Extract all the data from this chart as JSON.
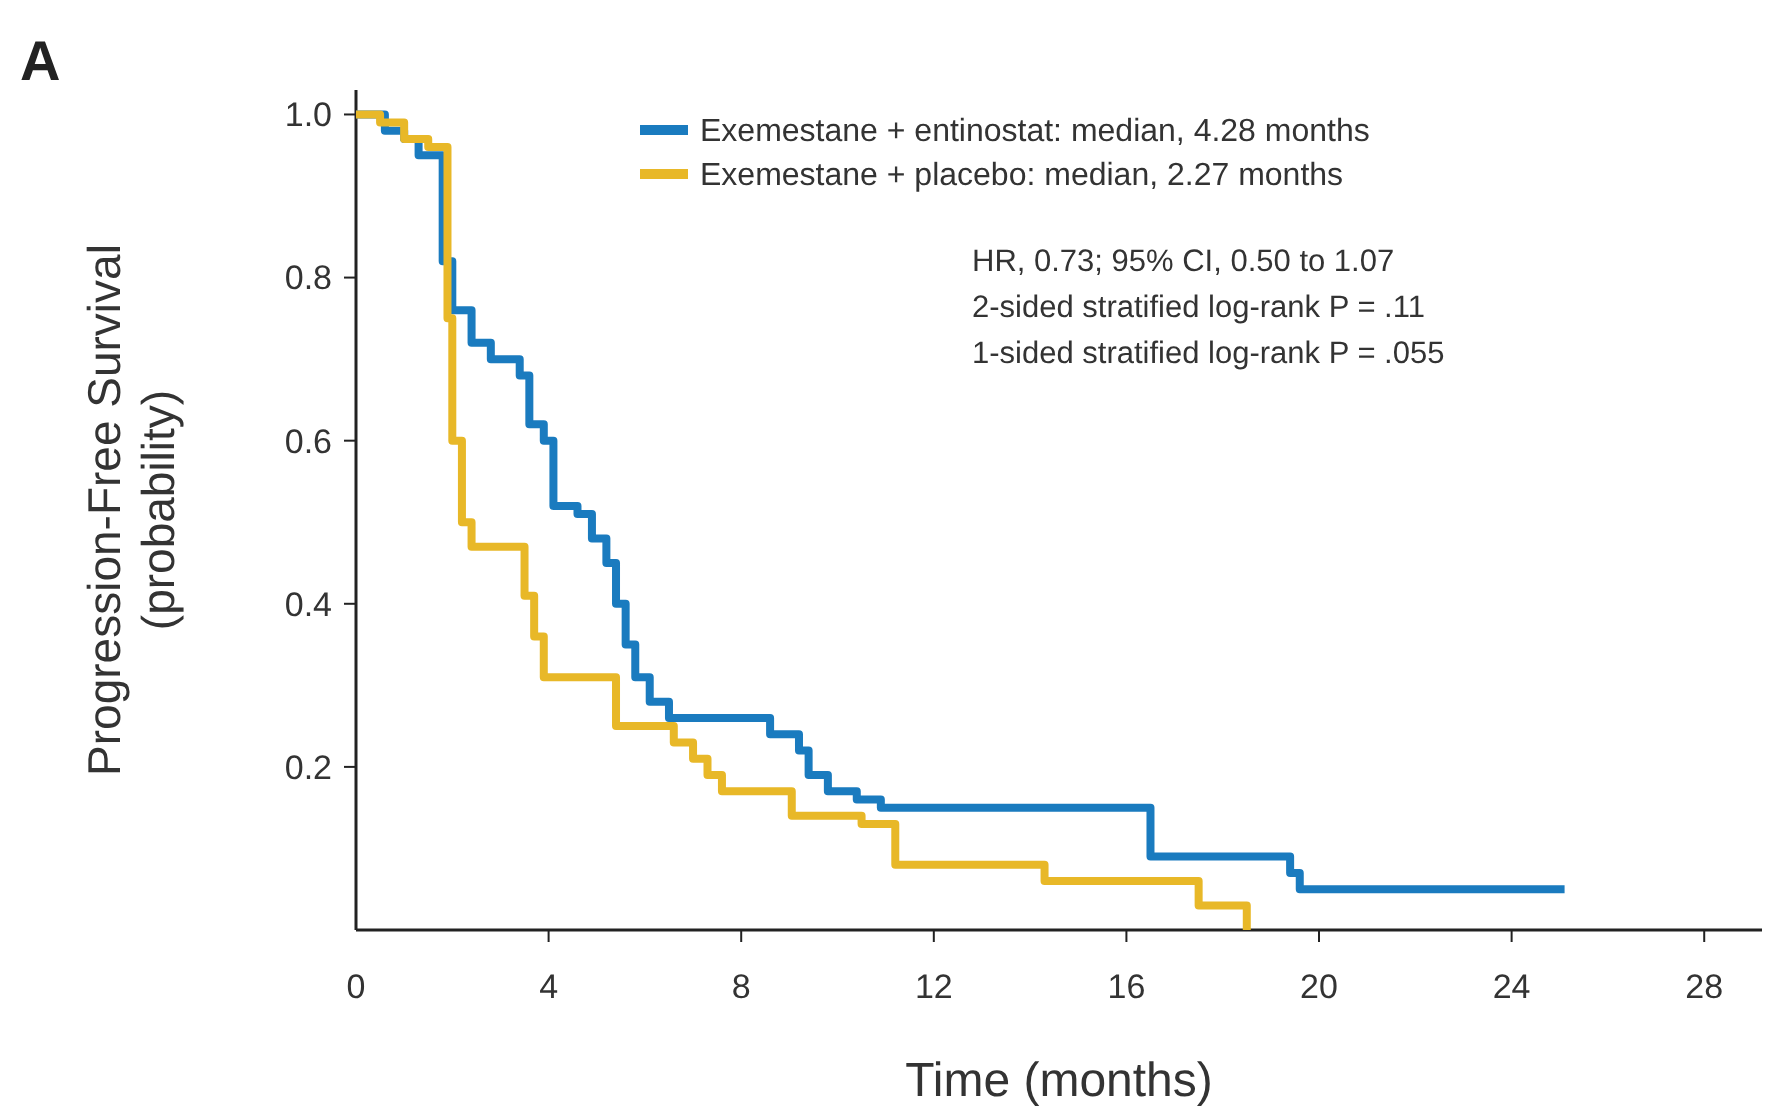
{
  "chart_data": {
    "type": "step",
    "title": "A",
    "xlabel": "Time (months)",
    "ylabel": "Progression-Free Survival\n(probability)",
    "xlim": [
      0,
      29.2
    ],
    "ylim": [
      0,
      1.03
    ],
    "xticks": [
      0,
      4,
      8,
      12,
      16,
      20,
      24,
      28
    ],
    "yticks": [
      0.2,
      0.4,
      0.6,
      0.8,
      {
        "value": 1,
        "label": "1.0"
      }
    ],
    "grid": false,
    "legend": "top right",
    "annotations": [
      "HR, 0.73; 95% CI, 0.50 to 1.07",
      "2-sided stratified log-rank P = .11",
      "1-sided stratified log-rank P = .055"
    ],
    "series": [
      {
        "name": "Exemestane + entinostat: median, 4.28 months",
        "color": "#1a7bbf",
        "x": [
          0,
          0.6,
          1.0,
          1.3,
          1.8,
          2.0,
          2.4,
          2.8,
          3.4,
          3.6,
          3.9,
          4.1,
          4.6,
          4.9,
          5.2,
          5.4,
          5.6,
          5.8,
          6.1,
          6.5,
          8.6,
          9.2,
          9.4,
          9.8,
          10.4,
          10.9,
          16.5,
          19.4,
          19.6,
          25.1
        ],
        "values": [
          1.0,
          0.98,
          0.97,
          0.95,
          0.82,
          0.76,
          0.72,
          0.7,
          0.68,
          0.62,
          0.6,
          0.52,
          0.51,
          0.48,
          0.45,
          0.4,
          0.35,
          0.31,
          0.28,
          0.26,
          0.24,
          0.22,
          0.19,
          0.17,
          0.16,
          0.15,
          0.09,
          0.07,
          0.05,
          0.05
        ]
      },
      {
        "name": "Exemestane + placebo: median, 2.27 months",
        "color": "#e8b828",
        "x": [
          0,
          0.5,
          1.0,
          1.5,
          1.9,
          2.0,
          2.2,
          2.4,
          3.5,
          3.7,
          3.9,
          5.4,
          6.6,
          7.0,
          7.3,
          7.6,
          9.05,
          10.5,
          11.2,
          14.3,
          17.5,
          18.5
        ],
        "values": [
          1.0,
          0.99,
          0.97,
          0.96,
          0.75,
          0.6,
          0.5,
          0.47,
          0.41,
          0.36,
          0.31,
          0.25,
          0.23,
          0.21,
          0.19,
          0.17,
          0.14,
          0.13,
          0.08,
          0.06,
          0.03,
          0
        ]
      }
    ]
  }
}
